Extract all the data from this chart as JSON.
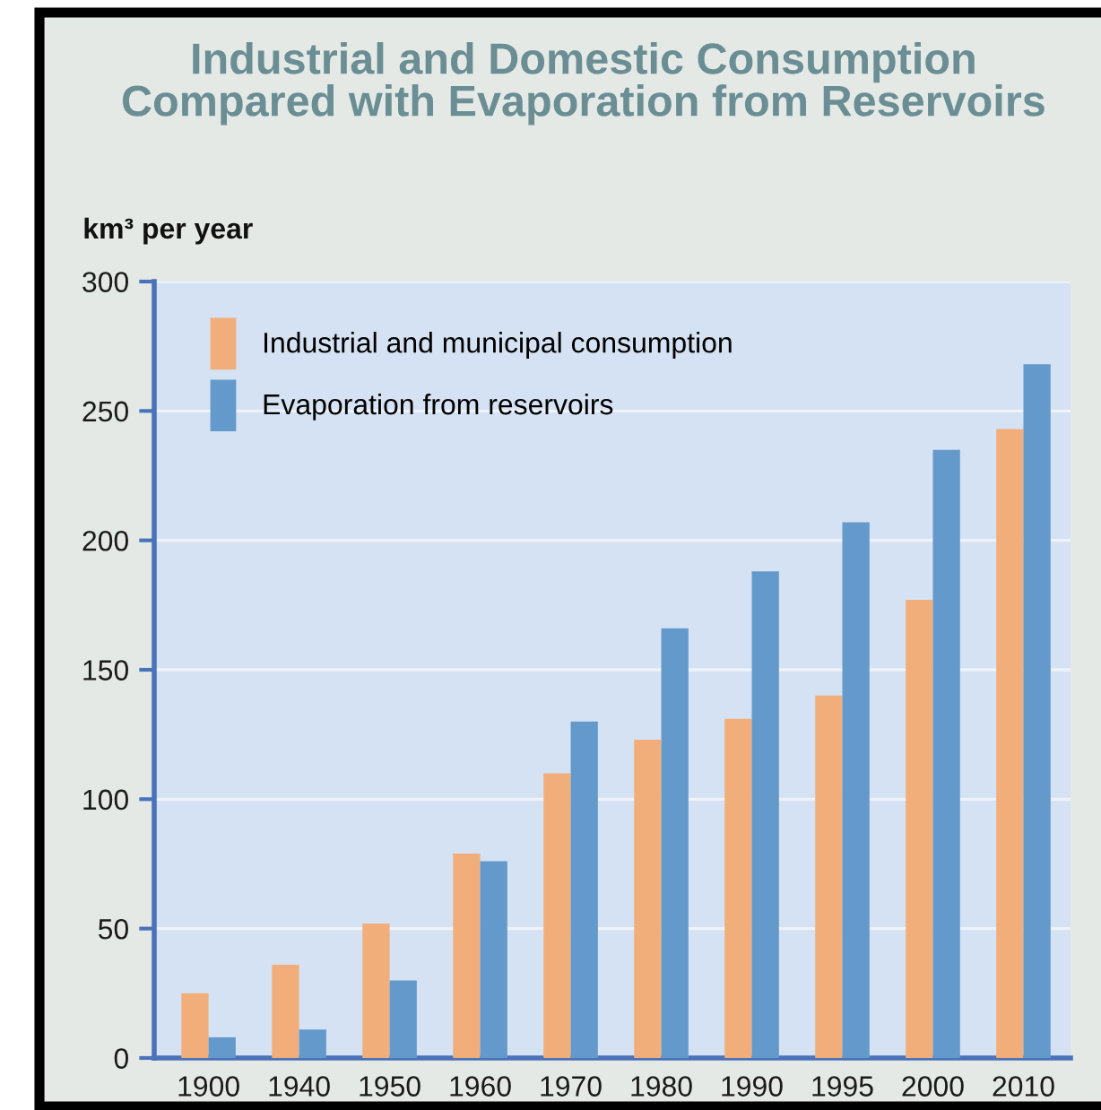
{
  "chart_data": {
    "type": "bar",
    "title": "Industrial and Domestic Consumption\nCompared with Evaporation from Reservoirs",
    "ylabel": "km³ per year",
    "categories": [
      "1900",
      "1940",
      "1950",
      "1960",
      "1970",
      "1980",
      "1990",
      "1995",
      "2000",
      "2010"
    ],
    "series": [
      {
        "name": "Industrial and municipal consumption",
        "color": "#f2ae7a",
        "values": [
          25,
          36,
          52,
          79,
          110,
          123,
          131,
          140,
          177,
          243
        ]
      },
      {
        "name": "Evaporation from reservoirs",
        "color": "#6499cb",
        "values": [
          8,
          11,
          30,
          76,
          130,
          166,
          188,
          207,
          235,
          268
        ]
      }
    ],
    "ylim": [
      0,
      300
    ],
    "yticks": [
      0,
      50,
      100,
      150,
      200,
      250,
      300
    ],
    "grid": "y",
    "legend": "top left"
  }
}
